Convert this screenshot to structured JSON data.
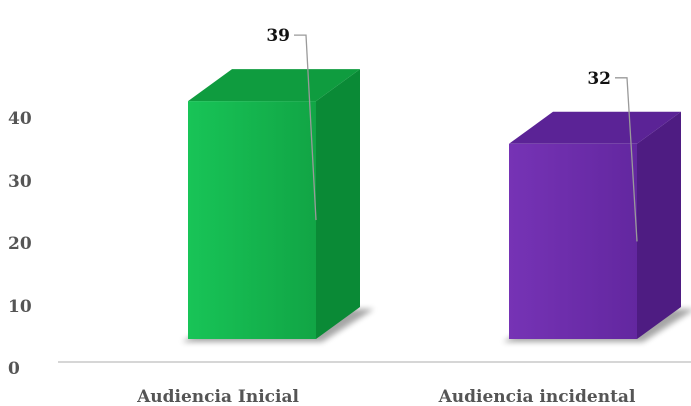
{
  "chart_data": {
    "type": "bar",
    "title": "",
    "xlabel": "",
    "ylabel": "",
    "categories": [
      "Audiencia Inicial",
      "Audiencia incidental"
    ],
    "values": [
      39,
      32
    ],
    "data_labels": [
      "39",
      "32"
    ],
    "ylim": [
      0,
      40
    ],
    "yticks": [
      "0",
      "10",
      "20",
      "30",
      "40"
    ],
    "grid": false,
    "legend": "none",
    "style": "3d",
    "colors": {
      "series": [
        "#14b04a",
        "#6a2aa8"
      ],
      "side": [
        "#0a8a36",
        "#4e1c82"
      ],
      "top": [
        "#0f9c3f",
        "#5b2396"
      ]
    }
  }
}
